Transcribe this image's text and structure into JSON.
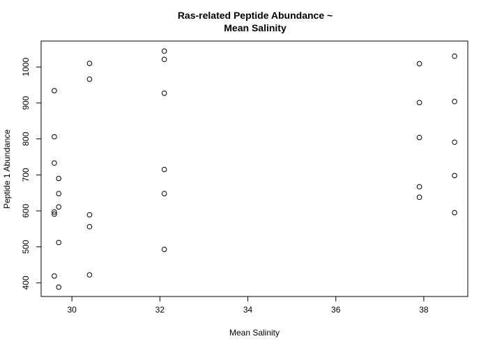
{
  "chart_data": {
    "type": "scatter",
    "title_lines": [
      "Ras-related Peptide Abundance ~",
      "Mean Salinity"
    ],
    "xlabel": "Mean Salinity",
    "ylabel": "Peptide 1 Abundance",
    "xlim": [
      29.3,
      39.0
    ],
    "ylim": [
      362,
      1072
    ],
    "x_ticks": [
      30,
      32,
      34,
      36,
      38
    ],
    "y_ticks": [
      400,
      500,
      600,
      700,
      800,
      900,
      1000
    ],
    "points": [
      {
        "x": 29.6,
        "y": 934
      },
      {
        "x": 29.6,
        "y": 806
      },
      {
        "x": 29.6,
        "y": 733
      },
      {
        "x": 29.7,
        "y": 690
      },
      {
        "x": 29.7,
        "y": 648
      },
      {
        "x": 29.7,
        "y": 611
      },
      {
        "x": 29.6,
        "y": 597
      },
      {
        "x": 29.6,
        "y": 591
      },
      {
        "x": 29.7,
        "y": 512
      },
      {
        "x": 29.6,
        "y": 419
      },
      {
        "x": 29.7,
        "y": 388
      },
      {
        "x": 30.4,
        "y": 1010
      },
      {
        "x": 30.4,
        "y": 966
      },
      {
        "x": 30.4,
        "y": 589
      },
      {
        "x": 30.4,
        "y": 556
      },
      {
        "x": 30.4,
        "y": 422
      },
      {
        "x": 32.1,
        "y": 1044
      },
      {
        "x": 32.1,
        "y": 1021
      },
      {
        "x": 32.1,
        "y": 927
      },
      {
        "x": 32.1,
        "y": 715
      },
      {
        "x": 32.1,
        "y": 648
      },
      {
        "x": 32.1,
        "y": 493
      },
      {
        "x": 37.9,
        "y": 1009
      },
      {
        "x": 37.9,
        "y": 901
      },
      {
        "x": 37.9,
        "y": 804
      },
      {
        "x": 37.9,
        "y": 667
      },
      {
        "x": 37.9,
        "y": 638
      },
      {
        "x": 38.7,
        "y": 1030
      },
      {
        "x": 38.7,
        "y": 904
      },
      {
        "x": 38.7,
        "y": 791
      },
      {
        "x": 38.7,
        "y": 698
      },
      {
        "x": 38.7,
        "y": 595
      }
    ]
  }
}
